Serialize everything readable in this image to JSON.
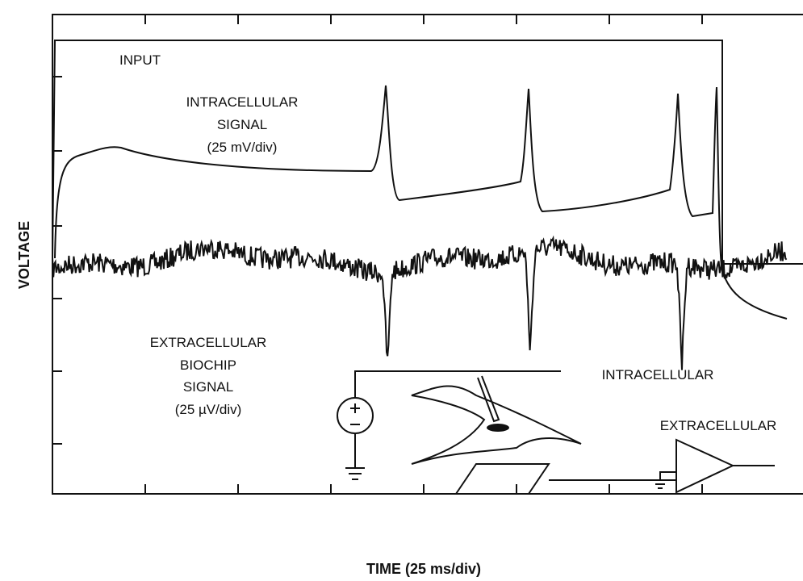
{
  "labels": {
    "input": "INPUT",
    "intracellular": [
      "INTRACELLULAR",
      "SIGNAL",
      "(25 mV/div)"
    ],
    "extracellular": [
      "EXTRACELLULAR",
      "BIOCHIP",
      "SIGNAL",
      "(25 µV/div)"
    ],
    "y_axis": "VOLTAGE",
    "x_axis": "TIME (25 ms/div)",
    "circuit_intracellular": "INTRACELLULAR",
    "circuit_extracellular": "EXTRACELLULAR"
  }
}
